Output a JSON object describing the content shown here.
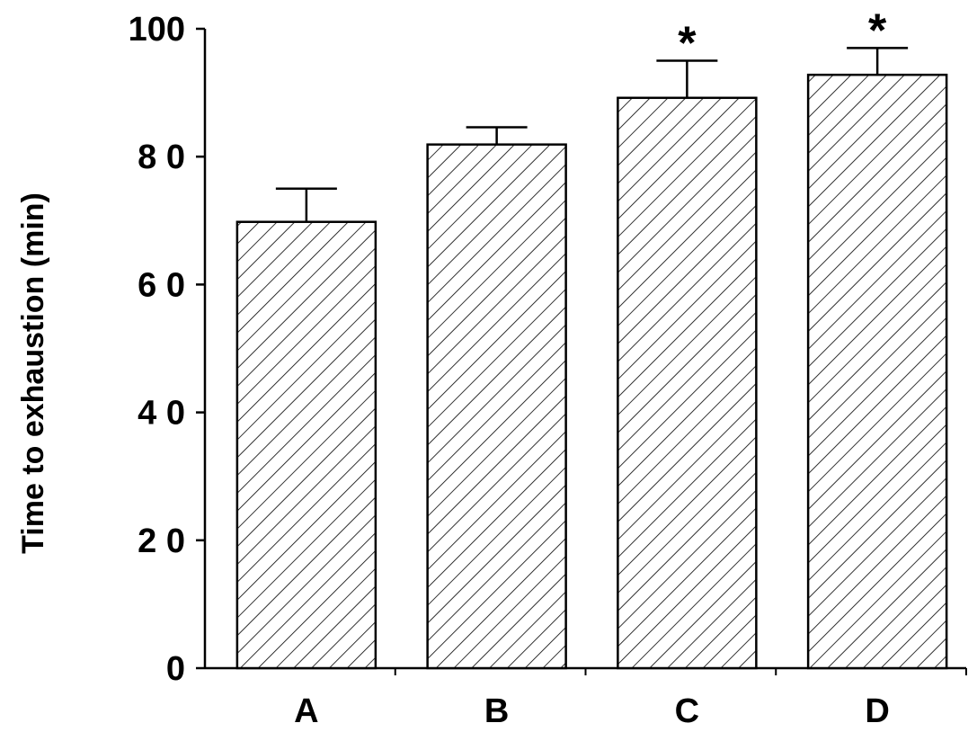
{
  "chart_data": {
    "type": "bar",
    "title": "",
    "xlabel": "",
    "ylabel": "Time to exhaustion (min)",
    "categories": [
      "A",
      "B",
      "C",
      "D"
    ],
    "values": [
      69.8,
      81.9,
      89.2,
      92.8
    ],
    "error_bars": [
      5.2,
      2.7,
      5.8,
      4.2
    ],
    "significance_markers": [
      "",
      "",
      "*",
      "*"
    ],
    "ylim": [
      0,
      100
    ],
    "yticks": [
      0,
      20,
      40,
      60,
      80,
      100
    ],
    "ytick_labels": [
      "0",
      "2 0",
      "4 0",
      "6 0",
      "8 0",
      "100"
    ],
    "grid": false,
    "legend": "none",
    "bar_fill": "diagonal-hatch",
    "colors": {
      "bar_edge": "#000000",
      "hatch": "#000000",
      "background": "#ffffff"
    }
  }
}
